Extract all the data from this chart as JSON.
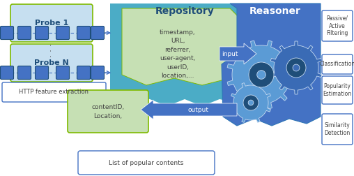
{
  "bg_color": "#ffffff",
  "probe1_label": "Probe 1",
  "probeN_label": "Probe N",
  "http_label": "HTTP feature extraction",
  "repo_title": "Repository",
  "repo_fields": "timestamp,\nURL,\nreferrer,\nuser-agent,\nuserID,\nlocation,...",
  "reasoner_label": "Reasoner",
  "input_label": "input",
  "output_label": "output",
  "contentid_label": "contentID,\nLocation,",
  "popular_label": "List of popular contents",
  "right_boxes": [
    "Passive/\nActive\nFiltering",
    "Classification",
    "Popularity\nEstimation",
    "Similarity\nDetection"
  ],
  "probe_box_color": "#c6dff0",
  "probe_box_edge": "#7fba00",
  "probe_chain_color": "#4472c4",
  "repo_teal": "#4bacc6",
  "repo_text_bg": "#c6e0b4",
  "repo_text_edge": "#7fba00",
  "reasoner_bg": "#4472c4",
  "reasoner_title_color": "#1f4e79",
  "arrow_blue": "#4472c4",
  "right_box_edge": "#4472c4",
  "right_box_fill": "#ffffff",
  "content_box_color": "#c6e0b4",
  "content_box_edge": "#7fba00",
  "http_box_color": "#ffffff",
  "http_box_edge": "#4472c4",
  "popular_box_edge": "#4472c4",
  "gear_outer": "#5b9bd5",
  "gear_mid": "#2e75b6",
  "gear_inner": "#1f4e79",
  "gear_teeth": "#c5d9f0"
}
